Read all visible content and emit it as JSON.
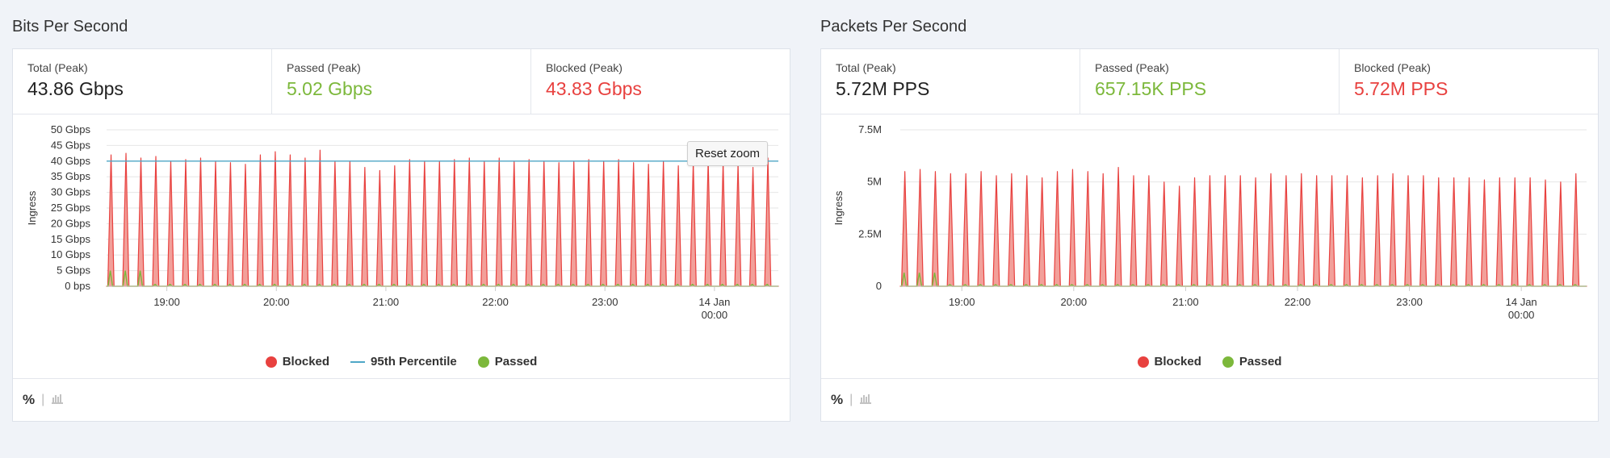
{
  "panels": [
    {
      "title": "Bits Per Second",
      "stats": [
        {
          "label": "Total (Peak)",
          "value": "43.86 Gbps"
        },
        {
          "label": "Passed (Peak)",
          "value": "5.02 Gbps"
        },
        {
          "label": "Blocked (Peak)",
          "value": "43.83 Gbps"
        }
      ],
      "reset_label": "Reset zoom",
      "legend": [
        {
          "label": "Blocked",
          "symbol": "dot",
          "color": "#e8413f"
        },
        {
          "label": "95th Percentile",
          "symbol": "line",
          "color": "#4fa7c7"
        },
        {
          "label": "Passed",
          "symbol": "dot",
          "color": "#7cb83b"
        }
      ],
      "footer": {
        "pct": "%",
        "sep": "|"
      }
    },
    {
      "title": "Packets Per Second",
      "stats": [
        {
          "label": "Total (Peak)",
          "value": "5.72M PPS"
        },
        {
          "label": "Passed (Peak)",
          "value": "657.15K PPS"
        },
        {
          "label": "Blocked (Peak)",
          "value": "5.72M PPS"
        }
      ],
      "legend": [
        {
          "label": "Blocked",
          "symbol": "dot",
          "color": "#e8413f"
        },
        {
          "label": "Passed",
          "symbol": "dot",
          "color": "#7cb83b"
        }
      ],
      "footer": {
        "pct": "%",
        "sep": "|"
      }
    }
  ],
  "chart_data": [
    {
      "type": "area",
      "ylabel": "Ingress",
      "y_ticks": [
        "50 Gbps",
        "45 Gbps",
        "40 Gbps",
        "35 Gbps",
        "30 Gbps",
        "25 Gbps",
        "20 Gbps",
        "15 Gbps",
        "10 Gbps",
        "5 Gbps",
        "0 bps"
      ],
      "ylim": [
        0,
        50
      ],
      "unit": "Gbps",
      "x_ticks": [
        [
          "19:00"
        ],
        [
          "20:00"
        ],
        [
          "21:00"
        ],
        [
          "22:00"
        ],
        [
          "23:00"
        ],
        [
          "14 Jan",
          "00:00"
        ]
      ],
      "x_range": [
        "18:27",
        "00:35"
      ],
      "percentile_95": 40,
      "colors": {
        "blocked": "#e8413f",
        "blocked_fill": "#f2a09a",
        "passed": "#7cb83b",
        "percentile": "#4fa7c7"
      },
      "series": [
        {
          "name": "Blocked",
          "peaks": [
            42,
            42.5,
            41,
            41.5,
            40,
            40.5,
            41,
            40,
            39.5,
            39,
            42,
            43,
            42,
            41,
            43.5,
            40,
            40,
            38,
            37,
            38.5,
            40.5,
            40,
            40,
            40.5,
            41,
            40,
            41,
            40,
            40.5,
            40,
            39.5,
            40,
            40.5,
            40,
            40.5,
            39.5,
            39,
            40,
            38.5,
            39.5,
            40,
            39.5,
            39,
            38,
            41
          ]
        },
        {
          "name": "Passed",
          "peak": 5
        }
      ]
    },
    {
      "type": "area",
      "ylabel": "Ingress",
      "y_ticks": [
        "7.5M",
        "5M",
        "2.5M",
        "0"
      ],
      "ylim": [
        0,
        7.5
      ],
      "unit": "M PPS",
      "x_ticks": [
        [
          "19:00"
        ],
        [
          "20:00"
        ],
        [
          "21:00"
        ],
        [
          "22:00"
        ],
        [
          "23:00"
        ],
        [
          "14 Jan",
          "00:00"
        ]
      ],
      "x_range": [
        "18:27",
        "00:35"
      ],
      "colors": {
        "blocked": "#e8413f",
        "blocked_fill": "#f2a09a",
        "passed": "#7cb83b"
      },
      "series": [
        {
          "name": "Blocked",
          "peaks": [
            5.5,
            5.6,
            5.5,
            5.4,
            5.4,
            5.5,
            5.3,
            5.4,
            5.3,
            5.2,
            5.5,
            5.6,
            5.5,
            5.4,
            5.7,
            5.3,
            5.3,
            5.0,
            4.8,
            5.2,
            5.3,
            5.3,
            5.3,
            5.2,
            5.4,
            5.3,
            5.4,
            5.3,
            5.3,
            5.3,
            5.2,
            5.3,
            5.4,
            5.3,
            5.3,
            5.2,
            5.2,
            5.2,
            5.1,
            5.2,
            5.2,
            5.2,
            5.1,
            5.0,
            5.4
          ]
        },
        {
          "name": "Passed",
          "peak": 0.65
        }
      ]
    }
  ]
}
